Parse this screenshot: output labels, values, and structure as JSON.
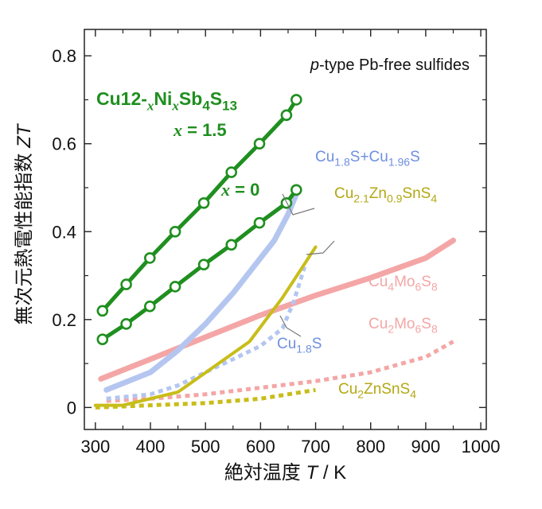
{
  "chart_data": {
    "type": "line",
    "title": "p-type Pb-free sulfides",
    "title_parts": {
      "italic": "p",
      "rest": "-type Pb-free sulfides"
    },
    "xlabel": {
      "jp": "絶対温度",
      "symbol": "T",
      "unit": " / K"
    },
    "ylabel": {
      "jp": "無次元熱電性能指数",
      "symbol": "ZT"
    },
    "xlim": [
      280,
      1010
    ],
    "ylim": [
      -0.05,
      0.86
    ],
    "xticks": [
      "300",
      "400",
      "500",
      "600",
      "700",
      "800",
      "900",
      "1000"
    ],
    "yticks": [
      "0",
      "0.2",
      "0.4",
      "0.6",
      "0.8"
    ],
    "grid": false,
    "series": [
      {
        "name": "Cu4Mo6S8",
        "color": "#f4a6a6",
        "style": "solid-thick",
        "x": [
          310,
          400,
          500,
          600,
          700,
          800,
          900,
          950
        ],
        "y": [
          0.065,
          0.11,
          0.16,
          0.21,
          0.255,
          0.295,
          0.34,
          0.38
        ]
      },
      {
        "name": "Cu2Mo6S8",
        "color": "#f4a6a6",
        "style": "dotted",
        "x": [
          320,
          400,
          500,
          600,
          700,
          800,
          900,
          950
        ],
        "y": [
          0.015,
          0.02,
          0.03,
          0.045,
          0.06,
          0.08,
          0.115,
          0.15
        ]
      },
      {
        "name": "Cu1.8S+Cu1.96S",
        "color": "#b4c6f0",
        "style": "solid-thick",
        "x": [
          320,
          400,
          450,
          500,
          550,
          600,
          625,
          650,
          665
        ],
        "y": [
          0.04,
          0.08,
          0.13,
          0.19,
          0.26,
          0.34,
          0.38,
          0.44,
          0.485
        ]
      },
      {
        "name": "Cu1.8S",
        "color": "#b4c6f0",
        "style": "dotted",
        "x": [
          320,
          400,
          450,
          500,
          550,
          600,
          640,
          660,
          680
        ],
        "y": [
          0.02,
          0.03,
          0.05,
          0.08,
          0.11,
          0.14,
          0.18,
          0.24,
          0.32
        ]
      },
      {
        "name": "Cu2.1Zn0.9SnS4",
        "color": "#c8bd1a",
        "style": "solid",
        "x": [
          300,
          350,
          450,
          580,
          640,
          700
        ],
        "y": [
          0.005,
          0.005,
          0.035,
          0.15,
          0.25,
          0.365
        ]
      },
      {
        "name": "Cu2ZnSnS4",
        "color": "#c8bd1a",
        "style": "dotted",
        "x": [
          300,
          400,
          500,
          600,
          700
        ],
        "y": [
          0.0,
          0.005,
          0.01,
          0.02,
          0.04
        ]
      },
      {
        "name": "Cu12-xNixSb4S13, x = 1.5",
        "color": "#1f8f1f",
        "style": "markers",
        "x": [
          313,
          356,
          399,
          445,
          497,
          547,
          598,
          647,
          665
        ],
        "y": [
          0.22,
          0.28,
          0.34,
          0.4,
          0.465,
          0.535,
          0.6,
          0.665,
          0.7
        ]
      },
      {
        "name": "Cu12-xNixSb4S13, x = 0",
        "color": "#1f8f1f",
        "style": "markers",
        "x": [
          313,
          356,
          399,
          445,
          497,
          547,
          598,
          647,
          665
        ],
        "y": [
          0.155,
          0.19,
          0.23,
          0.275,
          0.325,
          0.37,
          0.42,
          0.465,
          0.495
        ]
      }
    ],
    "labels": [
      {
        "key": "cu4mo6s8",
        "color": "#f4a6a6",
        "size": 19,
        "parts": [
          [
            "Cu",
            ""
          ],
          [
            "4",
            "sub"
          ],
          [
            "Mo",
            ""
          ],
          [
            "6",
            "sub"
          ],
          [
            "S",
            ""
          ],
          [
            "8",
            "sub"
          ]
        ]
      },
      {
        "key": "cu2mo6s8",
        "color": "#f4a6a6",
        "size": 19,
        "parts": [
          [
            "Cu",
            ""
          ],
          [
            "2",
            "sub"
          ],
          [
            "Mo",
            ""
          ],
          [
            "6",
            "sub"
          ],
          [
            "S",
            ""
          ],
          [
            "8",
            "sub"
          ]
        ]
      },
      {
        "key": "cu18s_cu196s",
        "color": "#6f8fe0",
        "size": 19,
        "parts": [
          [
            "Cu",
            ""
          ],
          [
            "1.8",
            "sub"
          ],
          [
            "S+Cu",
            ""
          ],
          [
            "1.96",
            "sub"
          ],
          [
            "S",
            ""
          ]
        ]
      },
      {
        "key": "cu18s",
        "color": "#6f8fe0",
        "size": 19,
        "parts": [
          [
            "Cu",
            ""
          ],
          [
            "1.8",
            "sub"
          ],
          [
            "S",
            ""
          ]
        ]
      },
      {
        "key": "cu21zn09sns4",
        "color": "#b3a812",
        "size": 19,
        "parts": [
          [
            "Cu",
            ""
          ],
          [
            "2.1",
            "sub"
          ],
          [
            "Zn",
            ""
          ],
          [
            "0.9",
            "sub"
          ],
          [
            "SnS",
            ""
          ],
          [
            "4",
            "sub"
          ]
        ]
      },
      {
        "key": "cu2znsns4",
        "color": "#b3a812",
        "size": 19,
        "parts": [
          [
            "Cu",
            ""
          ],
          [
            "2",
            "sub"
          ],
          [
            "ZnSnS",
            ""
          ],
          [
            "4",
            "sub"
          ]
        ]
      },
      {
        "key": "cu12nisbs",
        "color": "#1f8f1f",
        "size": 23,
        "bold": true,
        "parts": [
          [
            "Cu",
            ""
          ],
          [
            "12-",
            ""
          ],
          [
            "x",
            "italic-sub"
          ],
          [
            "Ni",
            ""
          ],
          [
            "x",
            "italic-sub"
          ],
          [
            "Sb",
            ""
          ],
          [
            "4",
            "sub"
          ],
          [
            "S",
            ""
          ],
          [
            "13",
            "sub"
          ]
        ]
      },
      {
        "key": "x15",
        "color": "#1f8f1f",
        "size": 22,
        "bold": true,
        "parts": [
          [
            "x",
            "italic"
          ],
          [
            " = 1.5",
            ""
          ]
        ]
      },
      {
        "key": "x0",
        "color": "#1f8f1f",
        "size": 22,
        "bold": true,
        "parts": [
          [
            "x",
            "italic"
          ],
          [
            " = 0",
            ""
          ]
        ]
      }
    ]
  }
}
